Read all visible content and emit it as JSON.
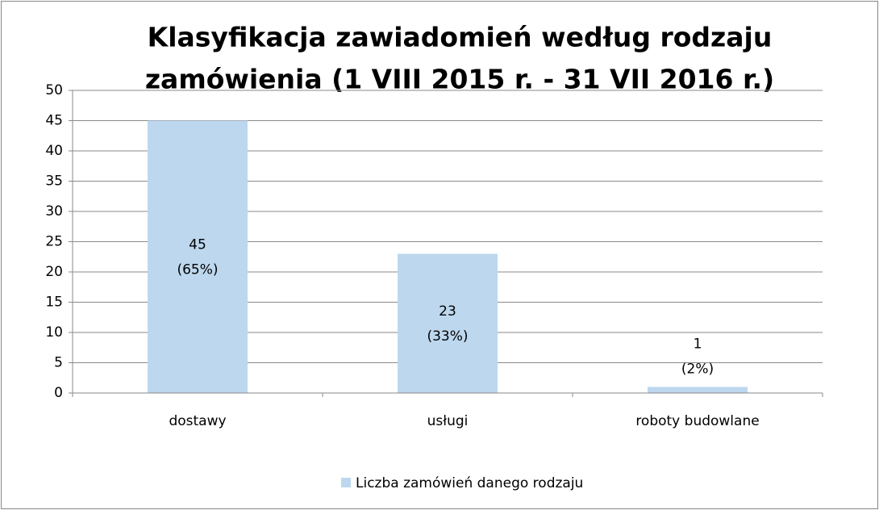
{
  "chart_data": {
    "type": "bar",
    "title": [
      "Klasyfikacja zawiadomień według rodzaju",
      "zamówienia (1 VIII 2015 r. - 31 VII 2016 r.)"
    ],
    "categories": [
      "dostawy",
      "usługi",
      "roboty budowlane"
    ],
    "series": [
      {
        "name": "Liczba zamówień danego rodzaju",
        "color": "#bdd7ee",
        "values": [
          45,
          23,
          1
        ],
        "value_labels": [
          "45 (65%)",
          "23 (33%)",
          "1 (2%)"
        ]
      }
    ],
    "ylim": [
      0,
      50
    ],
    "yticks": [
      0,
      5,
      10,
      15,
      20,
      25,
      30,
      35,
      40,
      45,
      50
    ],
    "grid": true,
    "legend": "bottom"
  }
}
